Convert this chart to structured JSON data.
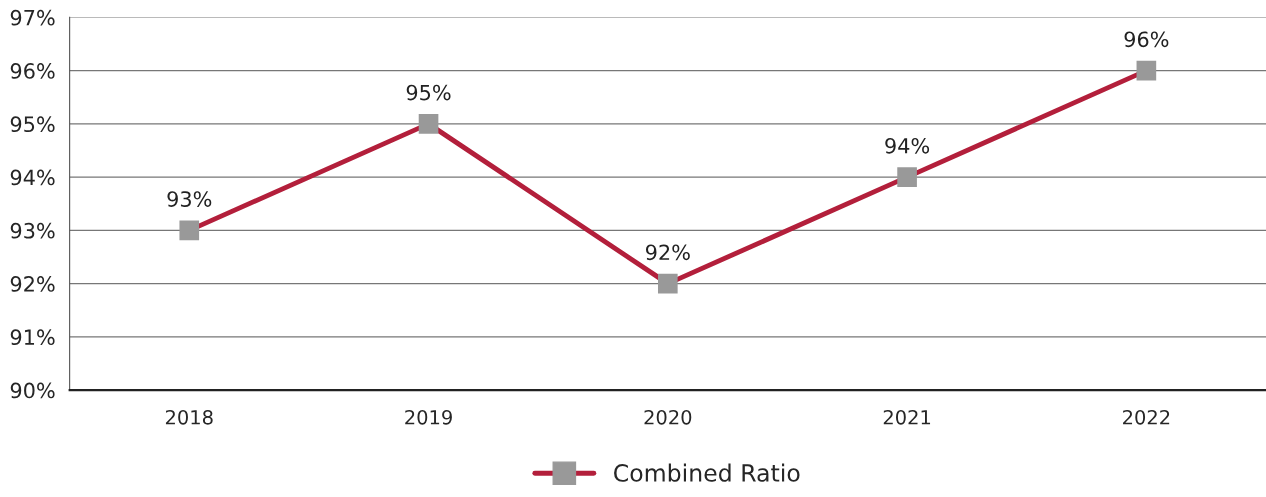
{
  "chart_data": {
    "type": "line",
    "categories": [
      "2018",
      "2019",
      "2020",
      "2021",
      "2022"
    ],
    "series": [
      {
        "name": "Combined Ratio",
        "color": "#b31f3b",
        "colors": [
          "#999999",
          "#999999",
          "#999999",
          "#999999",
          "#999999"
        ],
        "values": [
          93,
          95,
          92,
          94,
          96
        ]
      }
    ],
    "ylim": [
      90,
      97
    ],
    "yticks": [
      {
        "value": 90,
        "label": "90%"
      },
      {
        "value": 91,
        "label": "91%"
      },
      {
        "value": 92,
        "label": "92%"
      },
      {
        "value": 93,
        "label": "93%"
      },
      {
        "value": 94,
        "label": "94%"
      },
      {
        "value": 95,
        "label": "95%"
      },
      {
        "value": 96,
        "label": "96%"
      },
      {
        "value": 97,
        "label": "97%"
      }
    ],
    "value_labels": [
      "93%",
      "95%",
      "92%",
      "94%",
      "96%"
    ],
    "marker": "square",
    "line_style": "solid",
    "grid": "y",
    "legend": "bottom"
  }
}
